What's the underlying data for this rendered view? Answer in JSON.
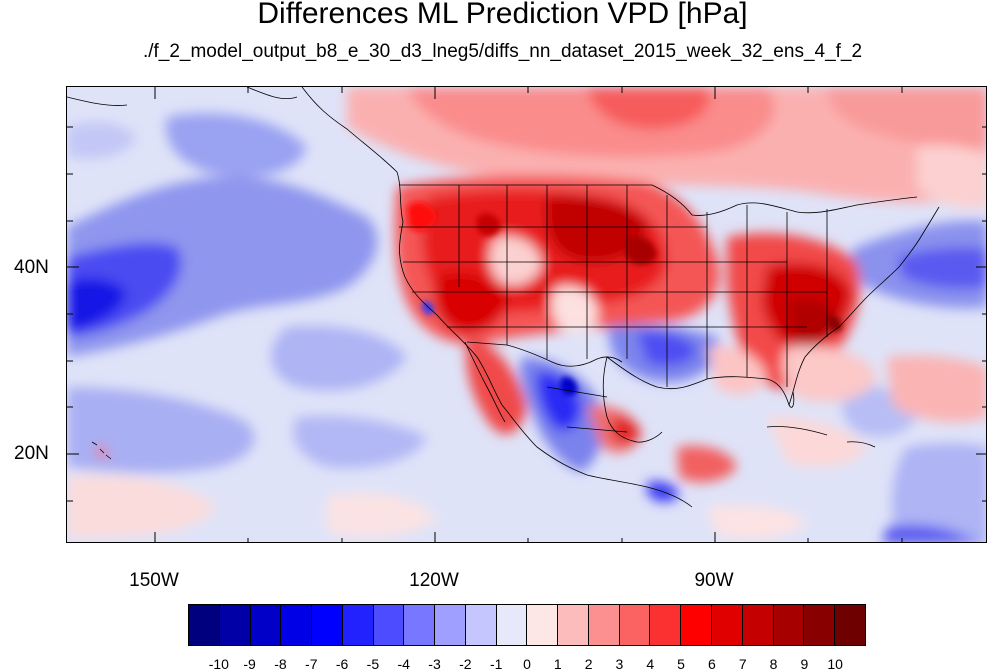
{
  "title": "Differences ML Prediction VPD [hPa]",
  "subtitle": "./f_2_model_output_b8_e_30_d3_lneg5/diffs_nn_dataset_2015_week_32_ens_4_f_2",
  "map": {
    "lat_labels": [
      "40N",
      "20N"
    ],
    "lon_labels": [
      "150W",
      "120W",
      "90W"
    ]
  },
  "colorbar": {
    "labels": [
      "-10",
      "-9",
      "-8",
      "-7",
      "-6",
      "-5",
      "-4",
      "-3",
      "-2",
      "-1",
      "0",
      "1",
      "2",
      "3",
      "4",
      "5",
      "6",
      "7",
      "8",
      "9",
      "10"
    ],
    "colors": [
      "#00007f",
      "#0000a6",
      "#0000c8",
      "#0000e6",
      "#0000ff",
      "#2222ff",
      "#4d4dff",
      "#7777ff",
      "#9f9fff",
      "#c6c6ff",
      "#e7e9fb",
      "#fde6e6",
      "#fdbcbc",
      "#fc9090",
      "#fb6262",
      "#fb3030",
      "#ff0000",
      "#e00000",
      "#c50000",
      "#a60000",
      "#880000",
      "#6e0000"
    ]
  },
  "colors": {
    "ocean_base": "#d7dcf7",
    "strong_blue": "#5a5af0",
    "mid_blue": "#9aa2f2",
    "light_red": "#fbbcbc",
    "mid_red": "#f86b6b",
    "strong_red": "#e81414",
    "border": "#000000"
  }
}
